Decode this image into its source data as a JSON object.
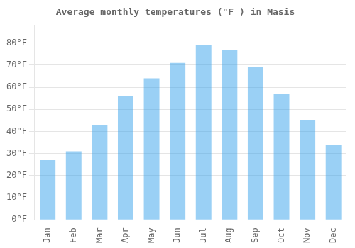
{
  "chart_data": {
    "type": "bar",
    "title": "Average monthly temperatures (°F ) in Masis",
    "categories": [
      "Jan",
      "Feb",
      "Mar",
      "Apr",
      "May",
      "Jun",
      "Jul",
      "Aug",
      "Sep",
      "Oct",
      "Nov",
      "Dec"
    ],
    "values": [
      27,
      31,
      43,
      56,
      64,
      71,
      79,
      77,
      69,
      57,
      45,
      34
    ],
    "ylim": [
      0,
      88
    ],
    "yticks": [
      {
        "value": 0,
        "label": "0°F"
      },
      {
        "value": 10,
        "label": "10°F"
      },
      {
        "value": 20,
        "label": "20°F"
      },
      {
        "value": 30,
        "label": "30°F"
      },
      {
        "value": 40,
        "label": "40°F"
      },
      {
        "value": 50,
        "label": "50°F"
      },
      {
        "value": 60,
        "label": "60°F"
      },
      {
        "value": 70,
        "label": "70°F"
      },
      {
        "value": 80,
        "label": "80°F"
      }
    ],
    "grid": true
  }
}
